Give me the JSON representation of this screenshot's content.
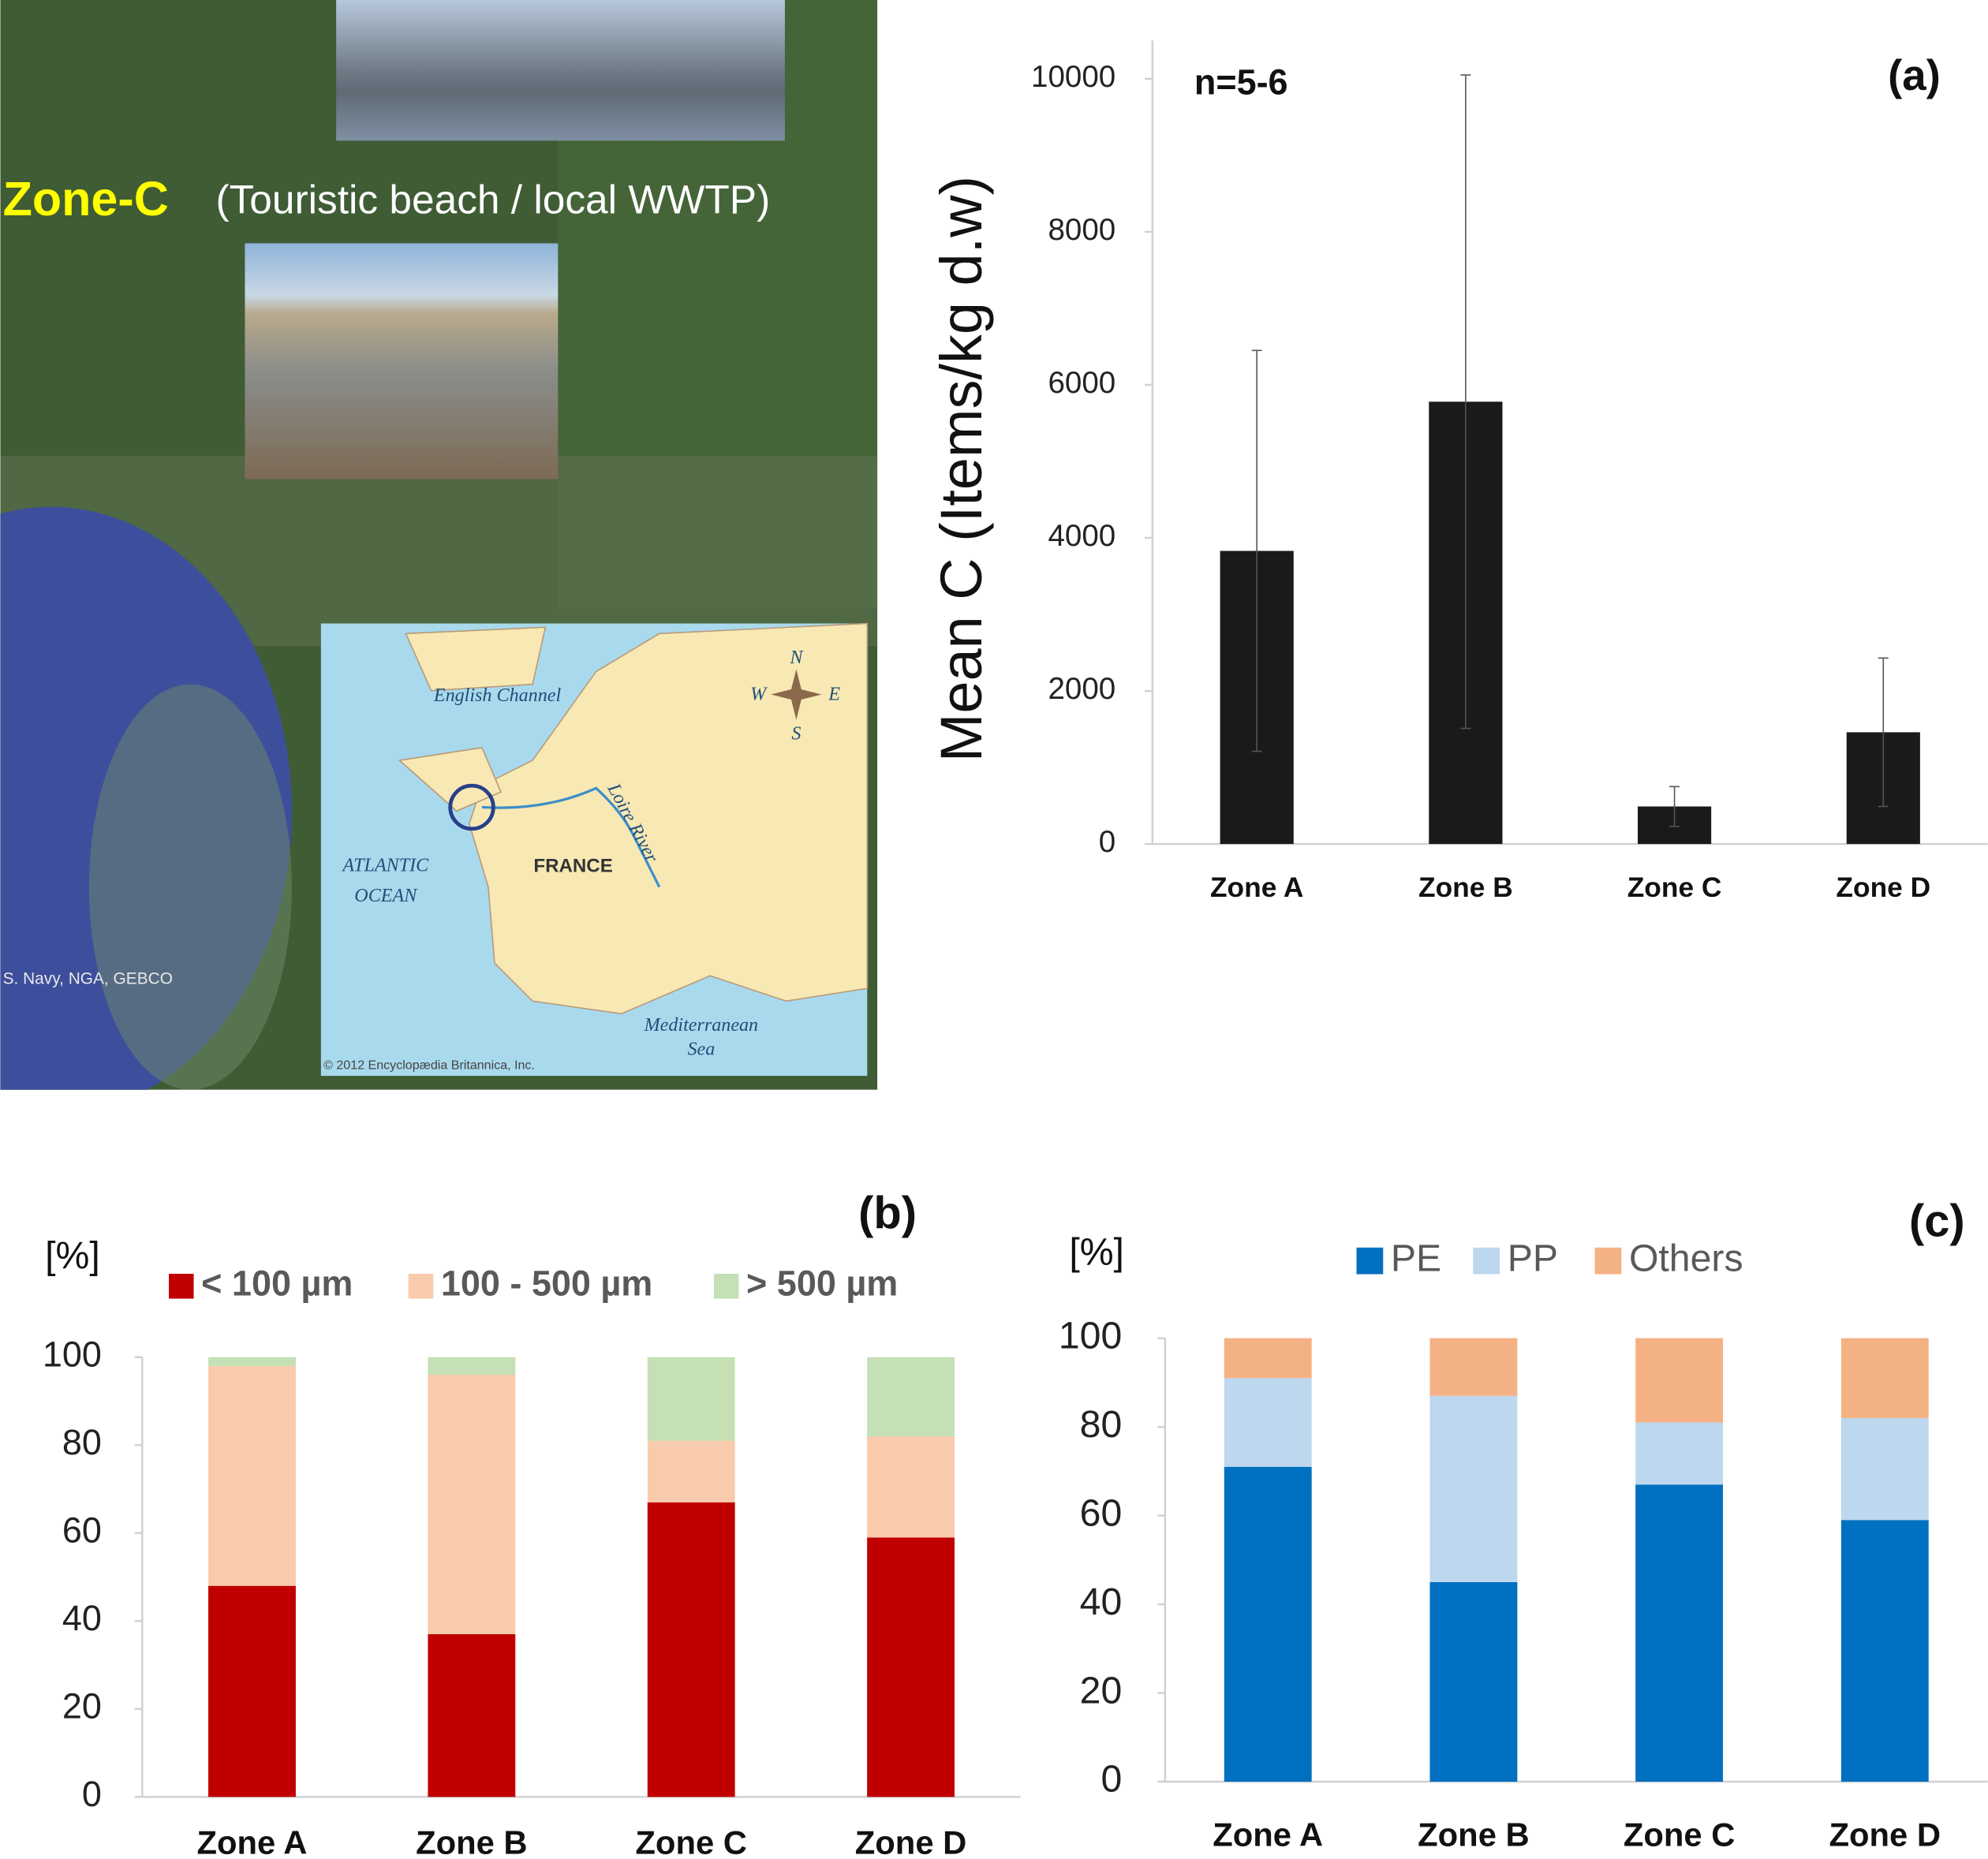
{
  "map": {
    "zone_label": "Zone-C",
    "zone_desc": "(Touristic beach / local WWTP)",
    "credit": "S. Navy, NGA, GEBCO",
    "inset": {
      "channel": "English Channel",
      "ocean": [
        "ATLANTIC",
        "OCEAN"
      ],
      "country": "FRANCE",
      "river": "Loire River",
      "sea": [
        "Mediterranean",
        "Sea"
      ],
      "copyright": "© 2012 Encyclopædia Britannica, Inc.",
      "compass": [
        "N",
        "E",
        "S",
        "W"
      ]
    }
  },
  "chart_data": [
    {
      "type": "bar",
      "panel": "(a)",
      "annotation": "n=5-6",
      "y_label": "Mean C (Items/kg d.w)",
      "categories": [
        "Zone A",
        "Zone B",
        "Zone C",
        "Zone D"
      ],
      "values": [
        3830,
        5780,
        490,
        1460
      ],
      "errors": [
        2620,
        4270,
        260,
        970
      ],
      "color": "#1a1a1a",
      "ylim": [
        0,
        10500
      ],
      "yticks": [
        0,
        2000,
        4000,
        6000,
        8000,
        10000
      ]
    },
    {
      "type": "stacked_bar",
      "panel": "(b)",
      "y_label": "[%]",
      "categories": [
        "Zone A",
        "Zone B",
        "Zone C",
        "Zone D"
      ],
      "series": [
        {
          "name": "< 100 µm",
          "color": "#c00000",
          "values": [
            48,
            37,
            67,
            59
          ]
        },
        {
          "name": "100 - 500 µm",
          "color": "#f8cbad",
          "values": [
            50,
            59,
            14,
            23
          ]
        },
        {
          "name": "> 500 µm",
          "color": "#c5e0b4",
          "values": [
            2,
            4,
            19,
            18
          ]
        }
      ],
      "ylim": [
        0,
        100
      ],
      "yticks": [
        0,
        20,
        40,
        60,
        80,
        100
      ]
    },
    {
      "type": "stacked_bar",
      "panel": "(c)",
      "y_label": "[%]",
      "categories": [
        "Zone A",
        "Zone B",
        "Zone C",
        "Zone D"
      ],
      "series": [
        {
          "name": "PE",
          "color": "#0070c0",
          "values": [
            71,
            45,
            67,
            59
          ]
        },
        {
          "name": "PP",
          "color": "#bdd7ee",
          "values": [
            20,
            42,
            14,
            23
          ]
        },
        {
          "name": "Others",
          "color": "#f4b183",
          "values": [
            9,
            13,
            19,
            18
          ]
        }
      ],
      "ylim": [
        0,
        100
      ],
      "yticks": [
        0,
        20,
        40,
        60,
        80,
        100
      ]
    }
  ]
}
